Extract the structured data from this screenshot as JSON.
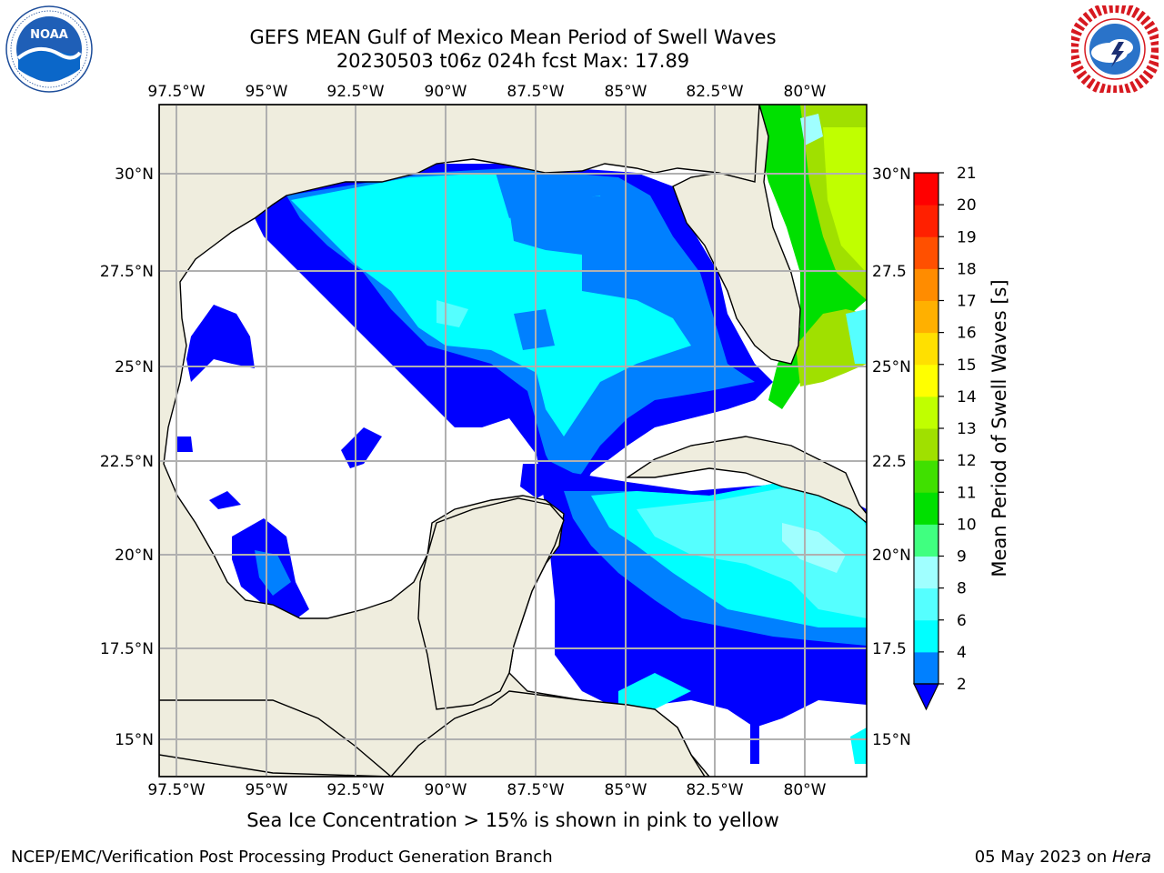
{
  "header": {
    "title_line1": "GEFS MEAN Gulf of Mexico Mean Period of Swell Waves",
    "title_line2": "20230503 t06z 024h fcst   Max: 17.89"
  },
  "logos": {
    "left": {
      "text": "NOAA",
      "ring_text": "NATIONAL OCEANIC AND ATMOSPHERIC ADMINISTRATION  U.S. DEPARTMENT OF COMMERCE"
    },
    "right": {
      "ring_text": "NATIONAL WEATHER SERVICE"
    }
  },
  "map": {
    "lon_labels": [
      "97.5°W",
      "95°W",
      "92.5°W",
      "90°W",
      "87.5°W",
      "85°W",
      "82.5°W",
      "80°W"
    ],
    "lat_labels_left": [
      "30°N",
      "27.5°N",
      "25°N",
      "22.5°N",
      "20°N",
      "17.5°N",
      "15°N"
    ],
    "lat_labels_right": [
      "30°N",
      "27.5",
      "25°N",
      "22.5",
      "20°N",
      "17.5",
      "15°N"
    ]
  },
  "colorbar": {
    "label": "Mean Period of Swell Waves [s]",
    "ticks": [
      "2",
      "4",
      "6",
      "8",
      "9",
      "10",
      "11",
      "12",
      "13",
      "14",
      "15",
      "16",
      "17",
      "18",
      "19",
      "20",
      "21"
    ],
    "colors": [
      "#0000ff",
      "#0080ff",
      "#00ffff",
      "#55ffff",
      "#a0ffff",
      "#40ff80",
      "#00e000",
      "#40e000",
      "#a0e000",
      "#c0ff00",
      "#ffff00",
      "#ffe000",
      "#ffb000",
      "#ff8c00",
      "#ff5000",
      "#ff2000",
      "#ff0000"
    ]
  },
  "caption": "Sea Ice Concentration > 15% is shown in pink to yellow",
  "footer": {
    "left": "NCEP/EMC/Verification Post Processing Product Generation Branch",
    "right_date": "05 May 2023 on ",
    "right_machine": "Hera"
  }
}
